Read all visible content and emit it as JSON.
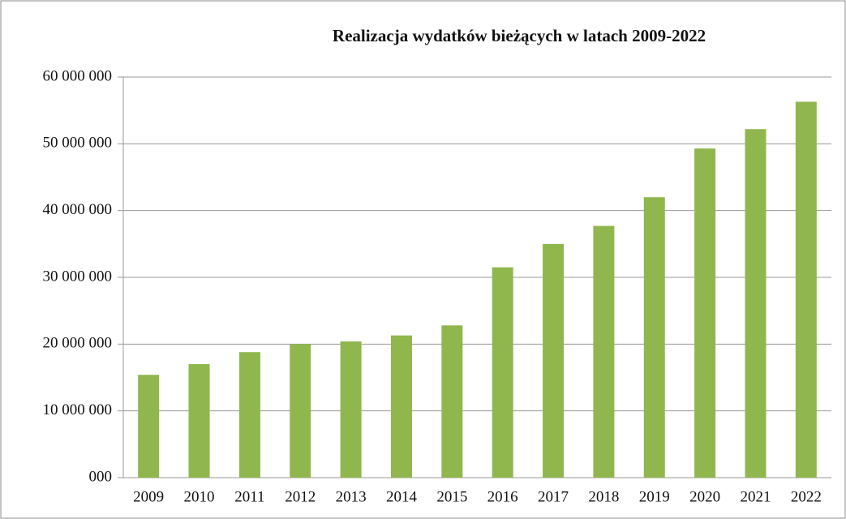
{
  "chart_data": {
    "type": "bar",
    "title": "Realizacja wydatków  bieżących w latach 2009-2022",
    "categories": [
      "2009",
      "2010",
      "2011",
      "2012",
      "2013",
      "2014",
      "2015",
      "2016",
      "2017",
      "2018",
      "2019",
      "2020",
      "2021",
      "2022"
    ],
    "values": [
      15400000,
      17000000,
      18800000,
      20000000,
      20400000,
      21300000,
      22800000,
      31500000,
      35000000,
      37700000,
      42000000,
      49300000,
      52200000,
      56300000
    ],
    "color": "#8fb74e",
    "ylim": [
      0,
      60000000
    ],
    "yticks": [
      {
        "value": 0,
        "label": "000"
      },
      {
        "value": 10000000,
        "label": "10 000 000"
      },
      {
        "value": 20000000,
        "label": "20 000 000"
      },
      {
        "value": 30000000,
        "label": "30 000 000"
      },
      {
        "value": 40000000,
        "label": "40 000 000"
      },
      {
        "value": 50000000,
        "label": "50 000 000"
      },
      {
        "value": 60000000,
        "label": "60 000 000"
      }
    ],
    "grid": true
  }
}
